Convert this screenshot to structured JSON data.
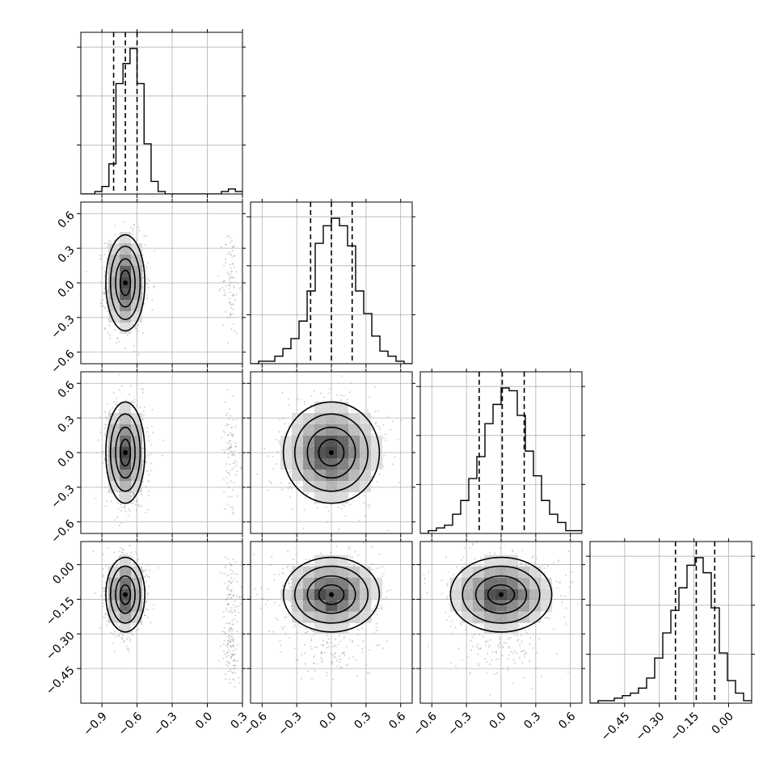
{
  "chart_data": {
    "type": "corner",
    "grid": true,
    "variables": [
      {
        "index": 0,
        "range": [
          -1.08,
          0.3
        ],
        "ticks": [
          -0.9,
          -0.6,
          -0.3,
          0.0,
          0.3
        ],
        "tick_labels": [
          "−0.9",
          "−0.6",
          "−0.3",
          "0.0",
          "0.3"
        ],
        "histogram": {
          "bin_edges": [
            -1.08,
            -1.02,
            -0.96,
            -0.9,
            -0.84,
            -0.78,
            -0.72,
            -0.66,
            -0.6,
            -0.54,
            -0.48,
            -0.42,
            -0.36,
            -0.3,
            -0.24,
            -0.18,
            -0.12,
            -0.06,
            0.0,
            0.06,
            0.12,
            0.18,
            0.24,
            0.3
          ],
          "counts": [
            0,
            0,
            1,
            3,
            12,
            44,
            52,
            58,
            44,
            20,
            5,
            1,
            0,
            0,
            0,
            0,
            0,
            0,
            0,
            0,
            1,
            2,
            1
          ]
        },
        "quantiles": [
          -0.8,
          -0.7,
          -0.6
        ],
        "main_mode": {
          "mean": -0.7,
          "sd": 0.072
        },
        "outlier_mode": {
          "center": 0.2,
          "sd": 0.035
        }
      },
      {
        "index": 1,
        "range": [
          -0.7,
          0.7
        ],
        "ticks": [
          -0.6,
          -0.3,
          0.0,
          0.3,
          0.6
        ],
        "tick_labels": [
          "−0.6",
          "−0.3",
          "0.0",
          "0.3",
          "0.6"
        ],
        "histogram": {
          "bin_edges": [
            -0.7,
            -0.63,
            -0.56,
            -0.49,
            -0.42,
            -0.35,
            -0.28,
            -0.21,
            -0.14,
            -0.07,
            0.0,
            0.07,
            0.14,
            0.21,
            0.28,
            0.35,
            0.42,
            0.49,
            0.56,
            0.63,
            0.7
          ],
          "counts": [
            0,
            1,
            1,
            3,
            6,
            10,
            17,
            29,
            48,
            55,
            58,
            55,
            47,
            29,
            20,
            11,
            5,
            3,
            1,
            0
          ]
        },
        "quantiles": [
          -0.18,
          0.0,
          0.18
        ],
        "main_mode": {
          "mean": 0.0,
          "sd": 0.18
        }
      },
      {
        "index": 2,
        "range": [
          -0.7,
          0.7
        ],
        "ticks": [
          -0.6,
          -0.3,
          0.0,
          0.3,
          0.6
        ],
        "tick_labels": [
          "−0.6",
          "−0.3",
          "0.0",
          "0.3",
          "0.6"
        ],
        "histogram": {
          "bin_edges": [
            -0.7,
            -0.63,
            -0.56,
            -0.49,
            -0.42,
            -0.35,
            -0.28,
            -0.21,
            -0.14,
            -0.07,
            0.0,
            0.07,
            0.14,
            0.21,
            0.28,
            0.35,
            0.42,
            0.49,
            0.56,
            0.63,
            0.7
          ],
          "counts": [
            0,
            1,
            2,
            3,
            7,
            12,
            20,
            28,
            40,
            47,
            53,
            52,
            43,
            30,
            21,
            12,
            7,
            4,
            1,
            1
          ]
        },
        "quantiles": [
          -0.19,
          0.01,
          0.2
        ],
        "main_mode": {
          "mean": 0.0,
          "sd": 0.19
        }
      },
      {
        "index": 3,
        "range": [
          -0.6,
          0.1
        ],
        "ticks": [
          -0.45,
          -0.3,
          -0.15,
          0.0
        ],
        "tick_labels": [
          "−0.45",
          "−0.30",
          "−0.15",
          "0.00"
        ],
        "histogram": {
          "bin_edges": [
            -0.6,
            -0.565,
            -0.53,
            -0.495,
            -0.46,
            -0.425,
            -0.39,
            -0.355,
            -0.32,
            -0.285,
            -0.25,
            -0.215,
            -0.18,
            -0.145,
            -0.11,
            -0.075,
            -0.04,
            -0.005,
            0.03,
            0.065,
            0.1
          ],
          "counts": [
            0,
            1,
            1,
            2,
            3,
            4,
            6,
            10,
            18,
            28,
            37,
            46,
            55,
            58,
            52,
            38,
            20,
            9,
            4,
            1
          ]
        },
        "quantiles": [
          -0.23,
          -0.14,
          -0.06
        ],
        "main_mode": {
          "mean": -0.13,
          "sd": 0.07
        },
        "outlier_mode": {
          "center": -0.38,
          "sd": 0.06
        }
      }
    ]
  }
}
